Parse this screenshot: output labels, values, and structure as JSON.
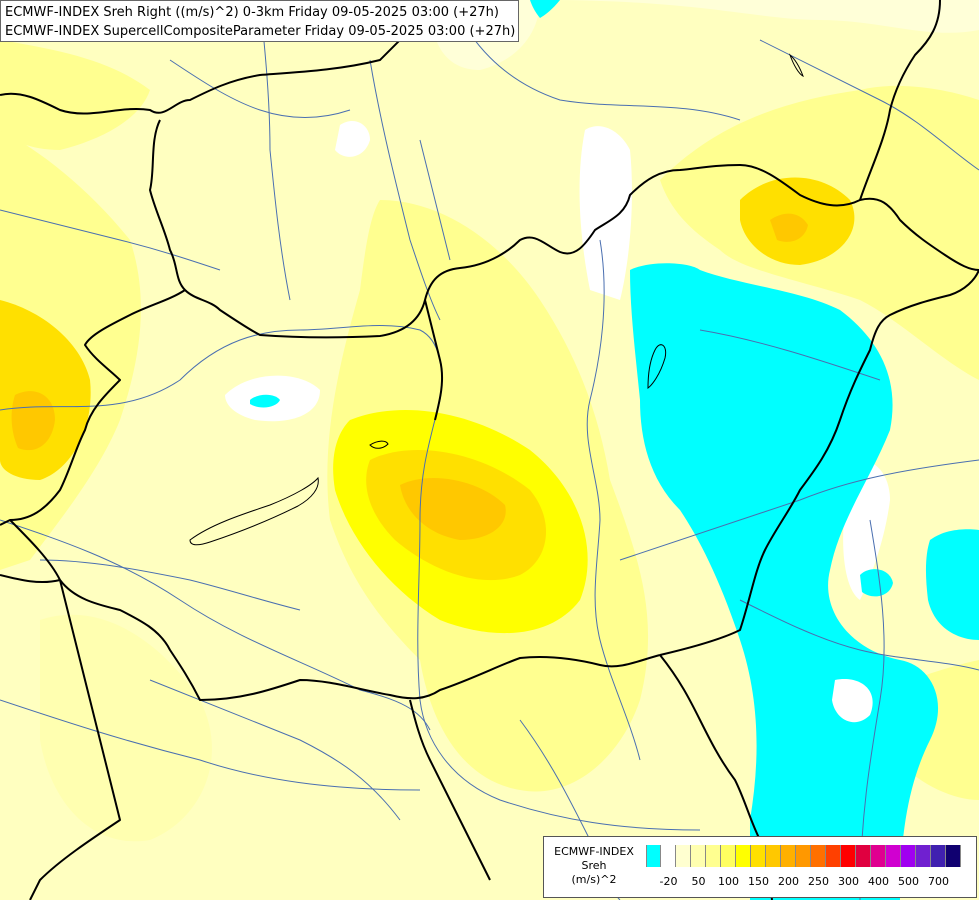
{
  "header": {
    "line1": "ECMWF-INDEX Sreh Right ((m/s)^2) 0-3km Friday 09-05-2025 03:00 (+27h)",
    "line2": "ECMWF-INDEX SupercellCompositeParameter Friday 09-05-2025 03:00 (+27h)"
  },
  "legend": {
    "title": "ECMWF-INDEX",
    "variable": "Sreh",
    "unit": "(m/s)^2",
    "colors": [
      "#00ffff",
      "#ffffff",
      "#ffffd0",
      "#ffffb0",
      "#ffff90",
      "#ffff60",
      "#ffff00",
      "#ffe000",
      "#ffc800",
      "#ffb000",
      "#ff9800",
      "#ff7000",
      "#ff4000",
      "#ff0000",
      "#e00040",
      "#e00090",
      "#d000d0",
      "#a000f0",
      "#7020d0",
      "#4020b0",
      "#100070"
    ],
    "ticks": [
      {
        "label": "-20",
        "index": 1
      },
      {
        "label": "50",
        "index": 3
      },
      {
        "label": "100",
        "index": 5
      },
      {
        "label": "150",
        "index": 7
      },
      {
        "label": "200",
        "index": 9
      },
      {
        "label": "250",
        "index": 11
      },
      {
        "label": "300",
        "index": 13
      },
      {
        "label": "400",
        "index": 15
      },
      {
        "label": "500",
        "index": 17
      },
      {
        "label": "700",
        "index": 19
      }
    ]
  },
  "map": {
    "background_color": "#ffffc0",
    "border_color": "#000000",
    "river_color": "#4a6fb0"
  }
}
